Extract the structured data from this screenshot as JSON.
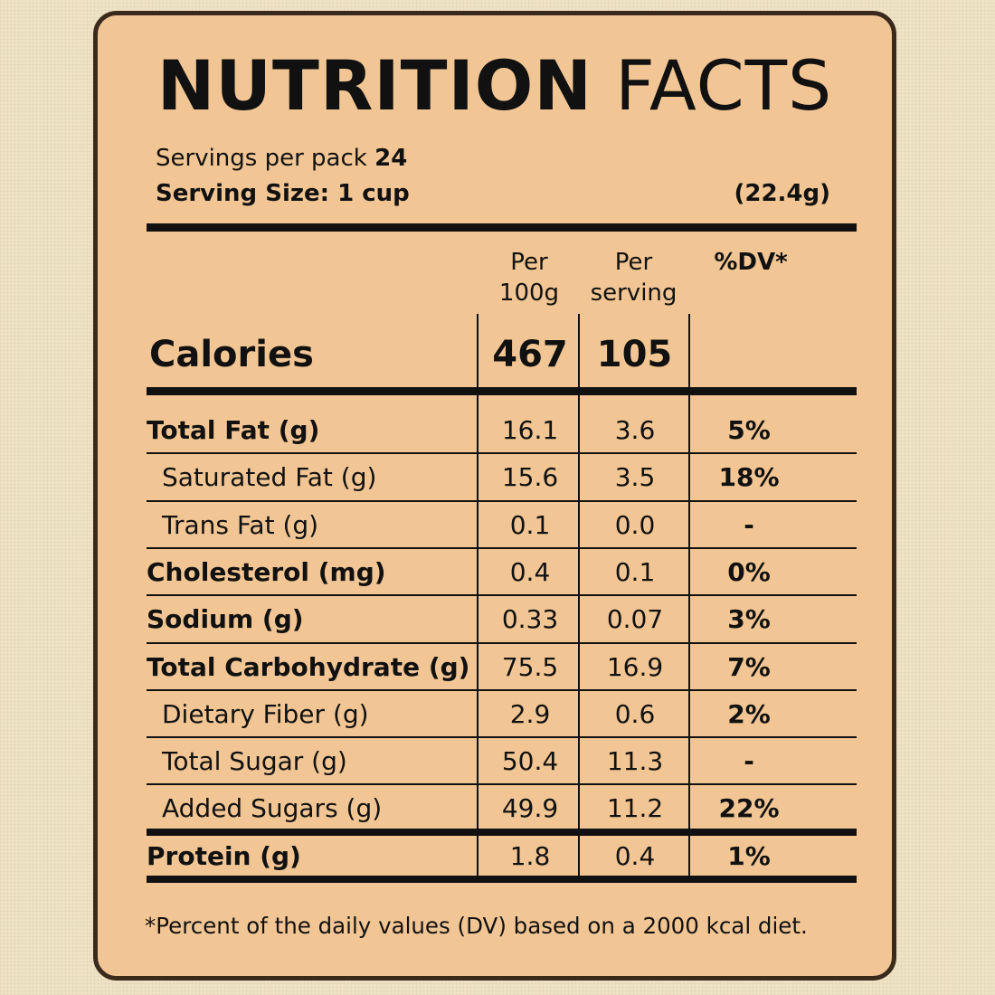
{
  "title": {
    "bold": "NUTRITION",
    "light": "FACTS"
  },
  "servings": {
    "per_pack_label": "Servings per pack",
    "per_pack_value": "24",
    "size_label": "Serving Size: 1 cup",
    "size_weight": "(22.4g)"
  },
  "headers": {
    "per100_line1": "Per",
    "per100_line2": "100g",
    "perserving_line1": "Per",
    "perserving_line2": "serving",
    "dv": "%DV*"
  },
  "calories": {
    "label": "Calories",
    "per100": "467",
    "perserving": "105"
  },
  "rows": [
    {
      "label": "Total Fat (g)",
      "per100": "16.1",
      "perserving": "3.6",
      "dv": "5%",
      "bold": true,
      "indent": false
    },
    {
      "label": "Saturated Fat (g)",
      "per100": "15.6",
      "perserving": "3.5",
      "dv": "18%",
      "bold": false,
      "indent": true
    },
    {
      "label": "Trans Fat (g)",
      "per100": "0.1",
      "perserving": "0.0",
      "dv": "-",
      "bold": false,
      "indent": true
    },
    {
      "label": "Cholesterol (mg)",
      "per100": "0.4",
      "perserving": "0.1",
      "dv": "0%",
      "bold": true,
      "indent": false
    },
    {
      "label": "Sodium (g)",
      "per100": "0.33",
      "perserving": "0.07",
      "dv": "3%",
      "bold": true,
      "indent": false
    },
    {
      "label": "Total Carbohydrate (g)",
      "per100": "75.5",
      "perserving": "16.9",
      "dv": "7%",
      "bold": true,
      "indent": false
    },
    {
      "label": "Dietary Fiber (g)",
      "per100": "2.9",
      "perserving": "0.6",
      "dv": "2%",
      "bold": false,
      "indent": true
    },
    {
      "label": "Total Sugar (g)",
      "per100": "50.4",
      "perserving": "11.3",
      "dv": "-",
      "bold": false,
      "indent": true
    },
    {
      "label": "Added Sugars (g)",
      "per100": "49.9",
      "perserving": "11.2",
      "dv": "22%",
      "bold": false,
      "indent": true
    },
    {
      "label": "Protein (g)",
      "per100": "1.8",
      "perserving": "0.4",
      "dv": "1%",
      "bold": true,
      "indent": false
    }
  ],
  "footer": "*Percent of the daily values (DV) based on a 2000 kcal diet."
}
